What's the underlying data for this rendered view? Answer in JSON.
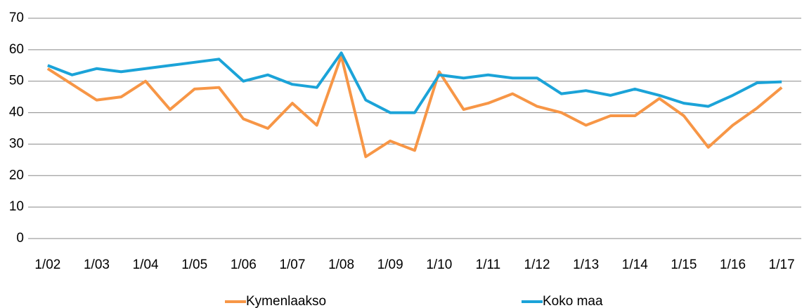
{
  "chart_data": {
    "type": "line",
    "categories": [
      "1/02",
      null,
      "1/03",
      null,
      "1/04",
      null,
      "1/05",
      null,
      "1/06",
      null,
      "1/07",
      null,
      "1/08",
      null,
      "1/09",
      null,
      "1/10",
      null,
      "1/11",
      null,
      "1/12",
      null,
      "1/13",
      null,
      "1/14",
      null,
      "1/15",
      null,
      "1/16",
      null,
      "1/17"
    ],
    "series": [
      {
        "name": "Kymenlaakso",
        "color": "#f79646",
        "values": [
          54,
          49,
          44,
          45,
          50,
          41,
          47.5,
          48,
          38,
          35,
          43,
          36,
          58,
          26,
          31,
          28,
          53,
          41,
          43,
          46,
          42,
          40,
          36,
          39,
          39,
          44.5,
          39,
          29,
          36,
          41.5,
          48
        ]
      },
      {
        "name": "Koko maa",
        "color": "#1ba3d8",
        "values": [
          55,
          52,
          54,
          53,
          54,
          55,
          56,
          57,
          50,
          52,
          49,
          48,
          59,
          44,
          40,
          40,
          52,
          51,
          52,
          51,
          51,
          46,
          47,
          45.5,
          47.5,
          45.5,
          43,
          42,
          45.5,
          49.5,
          49.8
        ]
      }
    ],
    "ylim": [
      0,
      70
    ],
    "yticks": [
      0,
      10,
      20,
      30,
      40,
      50,
      60,
      70
    ],
    "grid": true,
    "legend": "bottom"
  }
}
